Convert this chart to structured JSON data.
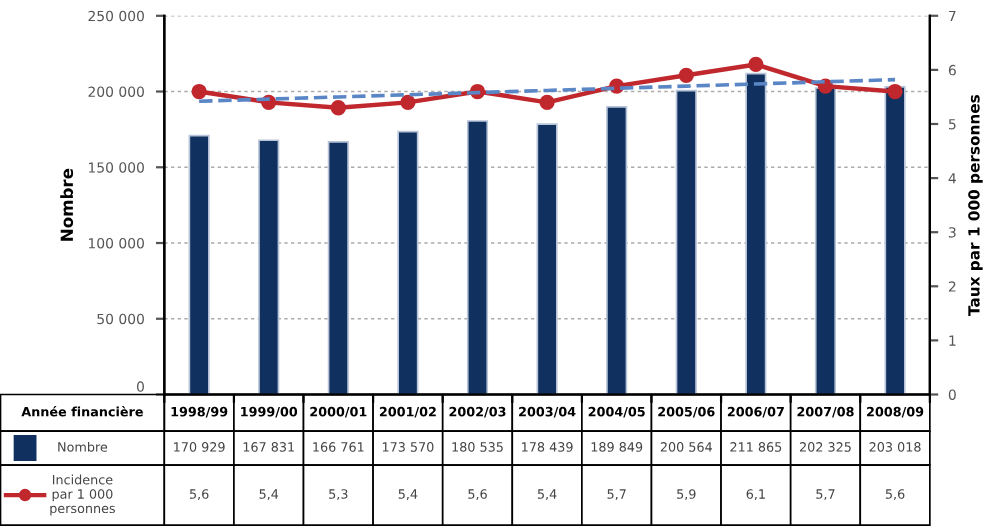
{
  "chart_data": {
    "type": "bar",
    "xlabel": "Année financière",
    "ylabel": "Nombre",
    "y2label": "Taux par 1 000 personnes",
    "categories": [
      "1998/99",
      "1999/00",
      "2000/01",
      "2001/02",
      "2002/03",
      "2003/04",
      "2004/05",
      "2005/06",
      "2006/07",
      "2007/08",
      "2008/09"
    ],
    "series": [
      {
        "name": "Nombre",
        "color": "#10305f",
        "values": [
          170929,
          167831,
          166761,
          173570,
          180535,
          178439,
          189849,
          200564,
          211865,
          202325,
          203018
        ],
        "value_labels": [
          "170 929",
          "167 831",
          "166 761",
          "173 570",
          "180 535",
          "178 439",
          "189 849",
          "200 564",
          "211 865",
          "202 325",
          "203 018"
        ]
      },
      {
        "name": "Incidence\npar 1 000\npersonnes",
        "type": "line",
        "axis": "y2",
        "color": "#c0282d",
        "marker": "circle",
        "line_style": "solid",
        "values": [
          5.6,
          5.4,
          5.3,
          5.4,
          5.6,
          5.4,
          5.7,
          5.9,
          6.1,
          5.7,
          5.6
        ],
        "value_labels": [
          "5,6",
          "5,4",
          "5,3",
          "5,4",
          "5,6",
          "5,4",
          "5,7",
          "5,9",
          "6,1",
          "5,7",
          "5,6"
        ]
      },
      {
        "type": "line",
        "axis": "y2",
        "color": "#5a86c6",
        "marker": "none",
        "line_style": "dashed",
        "values": [
          5.42,
          5.46,
          5.5,
          5.54,
          5.58,
          5.62,
          5.66,
          5.7,
          5.74,
          5.78,
          5.82
        ]
      }
    ],
    "ylim": [
      0,
      250000
    ],
    "yticks": [
      {
        "value": 0,
        "label": "0"
      },
      {
        "value": 50000,
        "label": "50 000"
      },
      {
        "value": 100000,
        "label": "100 000"
      },
      {
        "value": 150000,
        "label": "150 000"
      },
      {
        "value": 200000,
        "label": "200 000"
      },
      {
        "value": 250000,
        "label": "250 000"
      }
    ],
    "y2lim": [
      0,
      7
    ],
    "y2ticks": [
      0,
      1,
      2,
      3,
      4,
      5,
      6,
      7
    ],
    "grid": "y",
    "legend": "bottom",
    "tick_labels": "y"
  }
}
